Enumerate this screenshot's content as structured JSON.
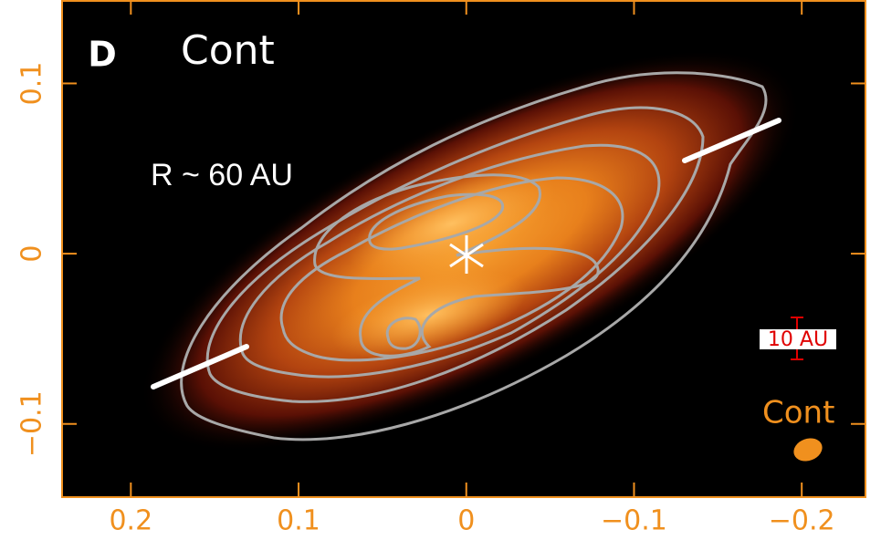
{
  "chart_data": {
    "type": "image",
    "panel_label": "D",
    "title": "Cont",
    "annotations": [
      "R ~ 60 AU",
      "10 AU",
      "Cont"
    ],
    "xlim": [
      0.241,
      -0.238
    ],
    "ylim": [
      -0.143,
      0.149
    ],
    "xticks": [
      0.2,
      0.1,
      0,
      {
        "value": -0.1,
        "label": "−0.1"
      },
      {
        "value": -0.2,
        "label": "−0.2"
      }
    ],
    "yticks": [
      {
        "value": -0.1,
        "label": "−0.1"
      },
      0,
      0.1
    ],
    "frame_color": "#f0901e"
  }
}
